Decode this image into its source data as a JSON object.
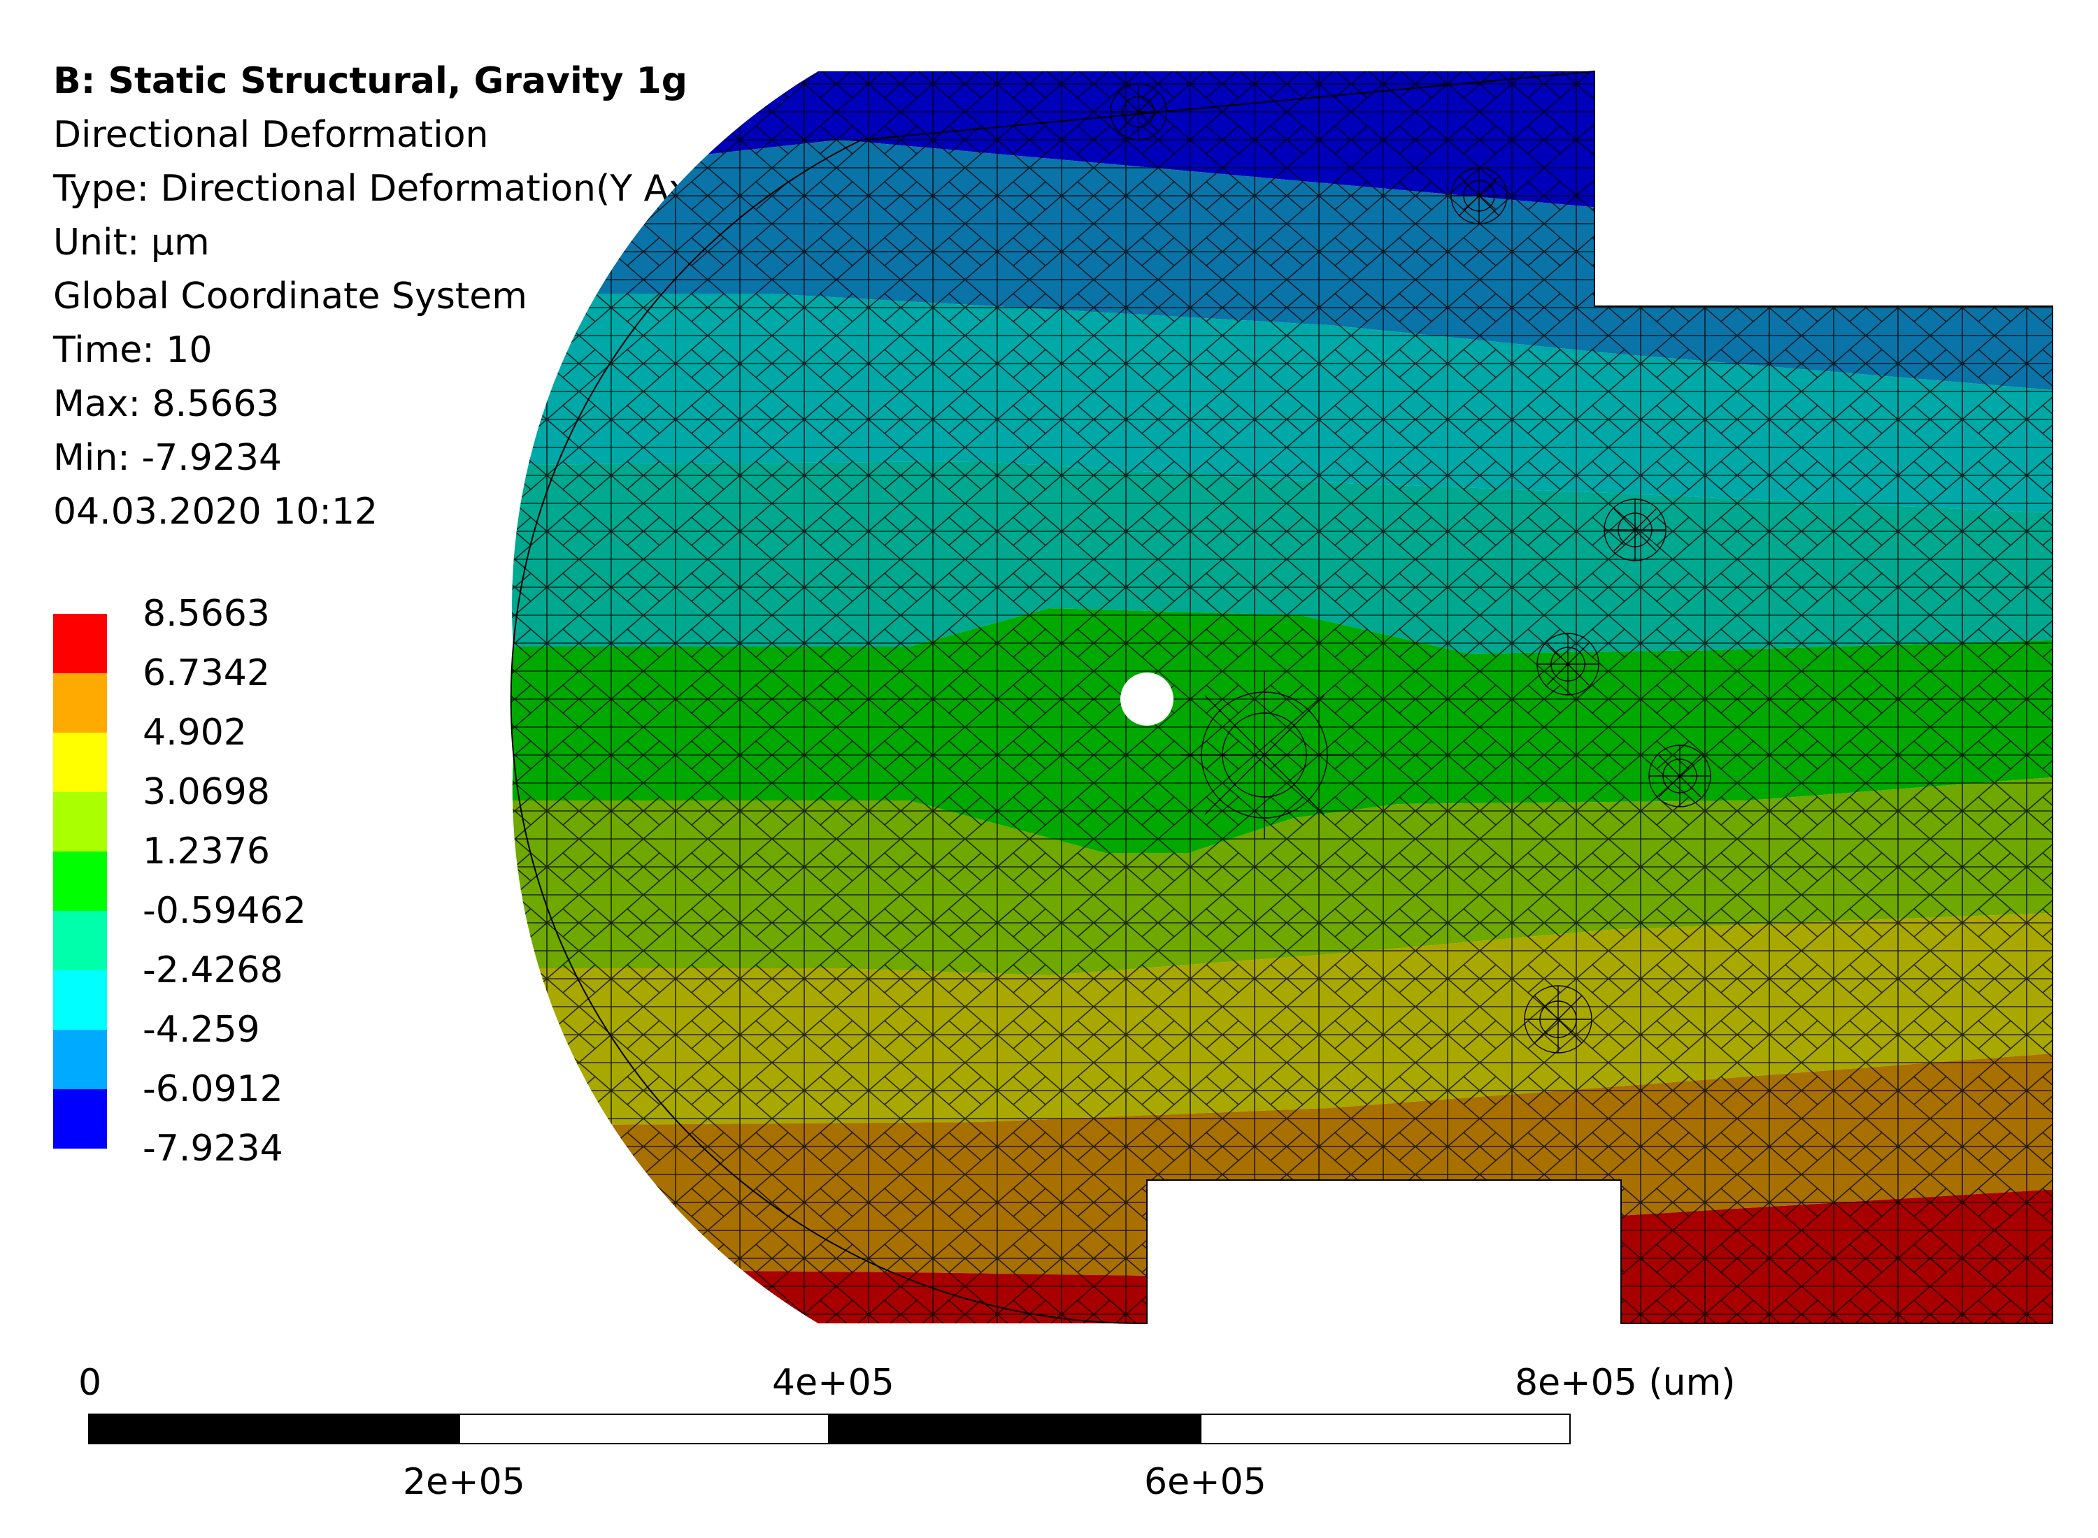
{
  "info": {
    "title": "B: Static Structural, Gravity 1g",
    "result_name": "Directional Deformation",
    "type": "Type: Directional Deformation(Y Axis)",
    "unit": "Unit: µm",
    "coordinate_system": "Global Coordinate System",
    "time": "Time: 10",
    "max": "Max: 8.5663",
    "min": "Min: -7.9234",
    "timestamp": "04.03.2020 10:12"
  },
  "legend": {
    "labels": [
      "8.5663",
      "6.7342",
      "4.902",
      "3.0698",
      "1.2376",
      "-0.59462",
      "-2.4268",
      "-4.259",
      "-6.0912",
      "-7.9234"
    ],
    "colors": [
      "#ff0000",
      "#ffaa00",
      "#ffff00",
      "#aaff00",
      "#00ff00",
      "#00ffaa",
      "#00ffff",
      "#00aaff",
      "#0000ff"
    ]
  },
  "contour_colors": [
    "#0000bb",
    "#0a73a8",
    "#00a8a8",
    "#00a890",
    "#00a800",
    "#6ea800",
    "#a8a800",
    "#a87000",
    "#a80000"
  ],
  "scale": {
    "top_labels": [
      "0",
      "4e+05",
      "8e+05 (um)"
    ],
    "bottom_labels": [
      "2e+05",
      "6e+05"
    ]
  }
}
